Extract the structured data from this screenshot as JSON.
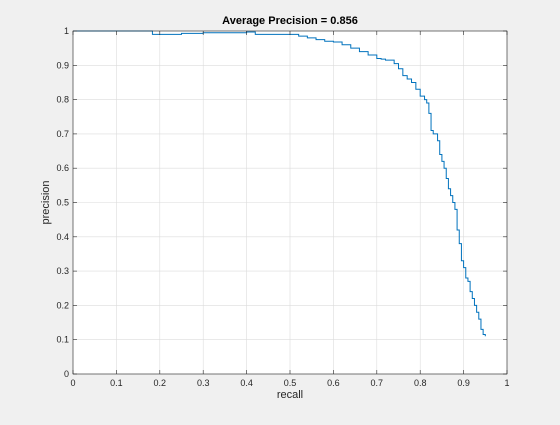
{
  "chart_data": {
    "type": "line",
    "title": "Average Precision = 0.856",
    "xlabel": "recall",
    "ylabel": "precision",
    "xlim": [
      0,
      1
    ],
    "ylim": [
      0,
      1
    ],
    "grid": true,
    "xticks": [
      "0",
      "0.1",
      "0.2",
      "0.3",
      "0.4",
      "0.5",
      "0.6",
      "0.7",
      "0.8",
      "0.9",
      "1"
    ],
    "yticks": [
      "0",
      "0.1",
      "0.2",
      "0.3",
      "0.4",
      "0.5",
      "0.6",
      "0.7",
      "0.8",
      "0.9",
      "1"
    ],
    "line_color": "#0072bd",
    "series": [
      {
        "x": [
          0.0,
          0.002,
          0.18,
          0.183,
          0.2,
          0.25,
          0.3,
          0.35,
          0.4,
          0.42,
          0.45,
          0.5,
          0.52,
          0.54,
          0.56,
          0.58,
          0.6,
          0.62,
          0.64,
          0.66,
          0.68,
          0.7,
          0.71,
          0.72,
          0.74,
          0.75,
          0.76,
          0.77,
          0.78,
          0.79,
          0.8,
          0.81,
          0.815,
          0.82,
          0.825,
          0.83,
          0.84,
          0.845,
          0.85,
          0.855,
          0.86,
          0.865,
          0.87,
          0.875,
          0.88,
          0.885,
          0.89,
          0.895,
          0.9,
          0.905,
          0.91,
          0.915,
          0.92,
          0.925,
          0.93,
          0.935,
          0.94,
          0.945,
          0.95
        ],
        "y": [
          1.0,
          1.0,
          1.0,
          0.99,
          0.99,
          0.993,
          0.995,
          0.995,
          0.997,
          0.99,
          0.99,
          0.99,
          0.985,
          0.98,
          0.975,
          0.97,
          0.968,
          0.96,
          0.95,
          0.94,
          0.93,
          0.92,
          0.918,
          0.915,
          0.905,
          0.89,
          0.87,
          0.86,
          0.85,
          0.83,
          0.81,
          0.8,
          0.79,
          0.76,
          0.71,
          0.7,
          0.68,
          0.64,
          0.62,
          0.6,
          0.57,
          0.54,
          0.52,
          0.5,
          0.48,
          0.42,
          0.38,
          0.33,
          0.31,
          0.28,
          0.27,
          0.24,
          0.22,
          0.2,
          0.18,
          0.16,
          0.13,
          0.115,
          0.11
        ]
      }
    ]
  }
}
